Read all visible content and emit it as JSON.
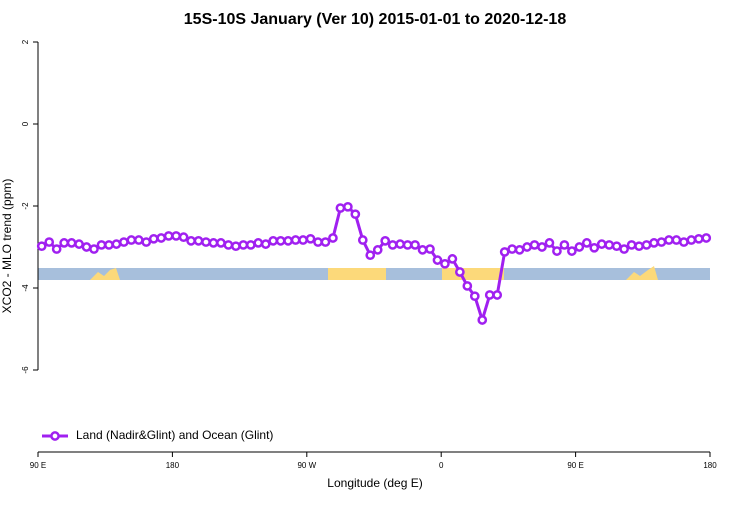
{
  "chart_data": {
    "type": "line",
    "title": "15S-10S January (Ver 10)   2015-01-01 to 2020-12-18",
    "x_label": "Longitude (deg E)",
    "y_label": "XCO2 - MLO trend (ppm)",
    "x": [
      92.5,
      97.5,
      102.5,
      107.5,
      112.5,
      117.5,
      122.5,
      127.5,
      132.5,
      137.5,
      142.5,
      147.5,
      152.5,
      157.5,
      162.5,
      167.5,
      172.5,
      177.5,
      182.5,
      187.5,
      192.5,
      197.5,
      202.5,
      207.5,
      212.5,
      217.5,
      222.5,
      227.5,
      232.5,
      237.5,
      242.5,
      247.5,
      252.5,
      257.5,
      262.5,
      267.5,
      272.5,
      277.5,
      282.5,
      287.5,
      292.5,
      297.5,
      302.5,
      307.5,
      312.5,
      317.5,
      322.5,
      327.5,
      332.5,
      337.5,
      342.5,
      347.5,
      352.5,
      357.5,
      362.5,
      367.5,
      372.5,
      377.5,
      382.5,
      387.5,
      392.5,
      397.5,
      402.5,
      407.5,
      412.5,
      417.5,
      422.5,
      427.5,
      432.5,
      437.5,
      442.5,
      447.5,
      452.5,
      457.5,
      462.5,
      467.5,
      472.5,
      477.5,
      482.5,
      487.5,
      492.5,
      497.5,
      502.5,
      507.5,
      512.5,
      517.5,
      522.5,
      527.5,
      532.5,
      537.5
    ],
    "series": [
      {
        "name": "Land (Nadir&Glint) and Ocean (Glint)",
        "color": "#a020f0",
        "values": [
          -2.98,
          -2.88,
          -3.05,
          -2.9,
          -2.9,
          -2.93,
          -3.0,
          -3.05,
          -2.95,
          -2.95,
          -2.93,
          -2.88,
          -2.83,
          -2.83,
          -2.88,
          -2.8,
          -2.78,
          -2.73,
          -2.73,
          -2.76,
          -2.85,
          -2.85,
          -2.88,
          -2.9,
          -2.9,
          -2.95,
          -2.98,
          -2.95,
          -2.95,
          -2.9,
          -2.93,
          -2.85,
          -2.85,
          -2.85,
          -2.83,
          -2.83,
          -2.8,
          -2.88,
          -2.88,
          -2.78,
          -2.05,
          -2.02,
          -2.2,
          -2.83,
          -3.2,
          -3.07,
          -2.85,
          -2.95,
          -2.93,
          -2.95,
          -2.95,
          -3.07,
          -3.05,
          -3.32,
          -3.41,
          -3.29,
          -3.61,
          -3.95,
          -4.2,
          -4.78,
          -4.17,
          -4.17,
          -3.12,
          -3.05,
          -3.07,
          -3.0,
          -2.95,
          -3.0,
          -2.9,
          -3.1,
          -2.95,
          -3.1,
          -3.0,
          -2.9,
          -3.02,
          -2.93,
          -2.95,
          -2.98,
          -3.05,
          -2.95,
          -2.98,
          -2.95,
          -2.9,
          -2.88,
          -2.83,
          -2.83,
          -2.88,
          -2.83,
          -2.8,
          -2.78
        ]
      }
    ],
    "xlim": [
      90,
      540
    ],
    "xticks": [
      {
        "value": 90,
        "label": "90 E"
      },
      {
        "value": 180,
        "label": "180"
      },
      {
        "value": 270,
        "label": "90 W"
      },
      {
        "value": 360,
        "label": "0"
      },
      {
        "value": 450,
        "label": "90 E"
      },
      {
        "value": 540,
        "label": "180"
      }
    ],
    "ylim": [
      -8,
      2
    ],
    "yticks": [
      2,
      0,
      -2,
      -4,
      -6
    ],
    "legend": "bottom-left"
  }
}
